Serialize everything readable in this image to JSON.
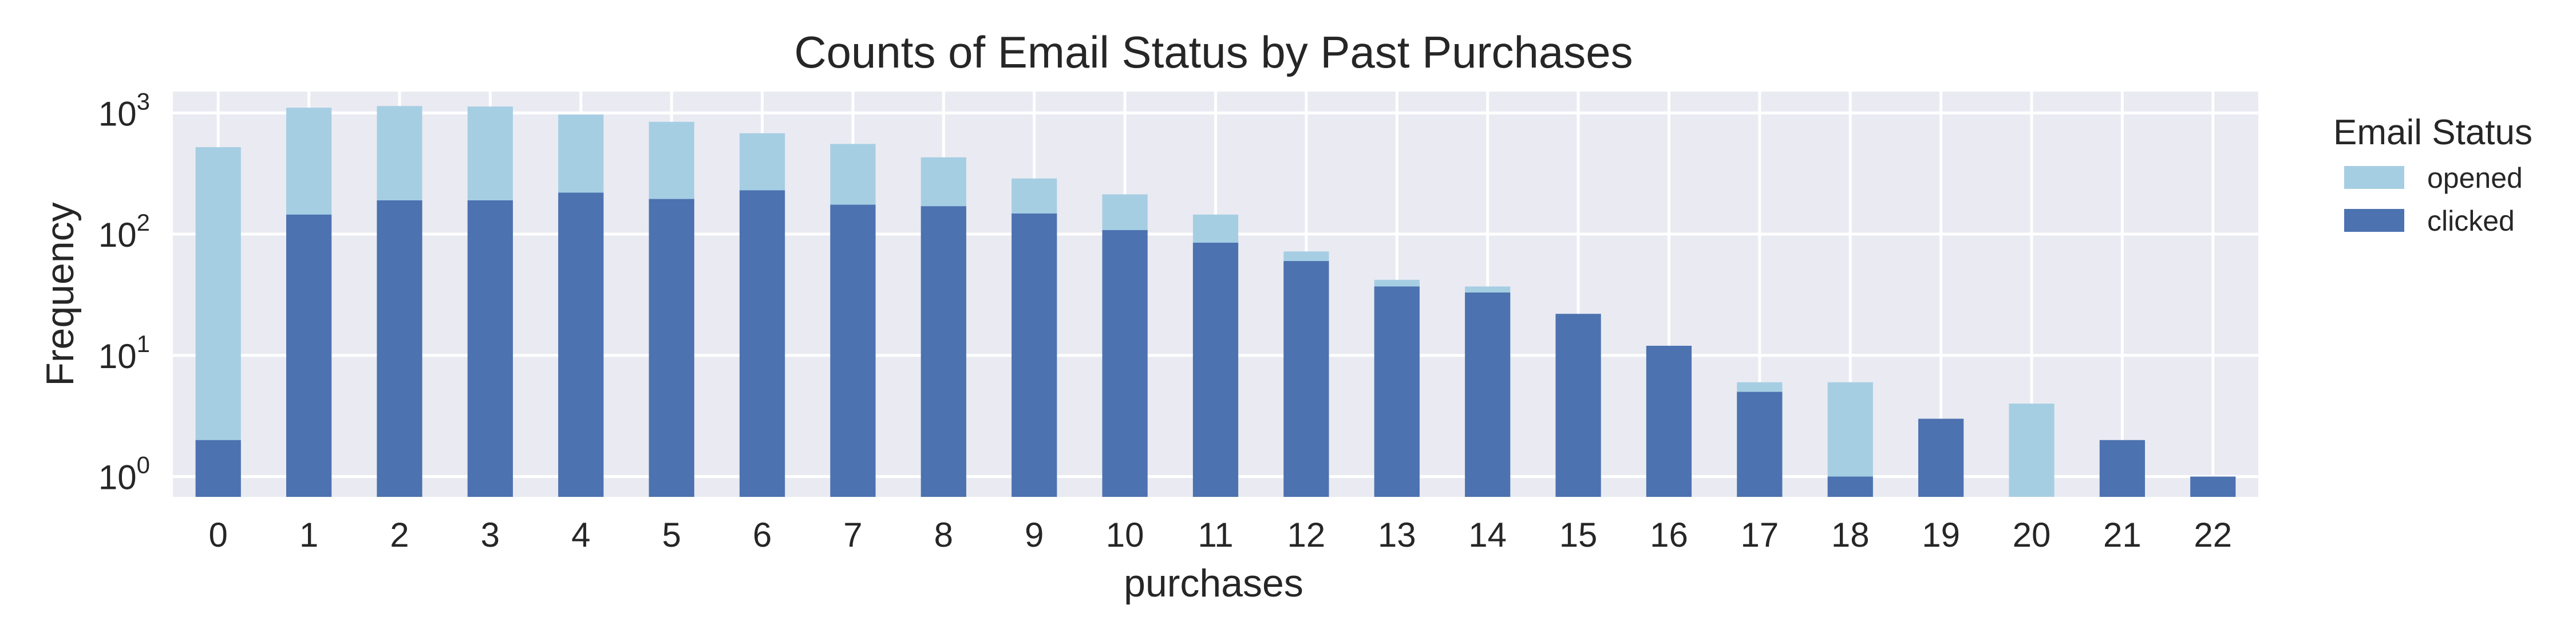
{
  "chart_data": {
    "type": "bar",
    "stacked": true,
    "title": "Counts of Email Status by Past Purchases",
    "xlabel": "purchases",
    "ylabel": "Frequency",
    "yscale": "log",
    "ylim": [
      0.68,
      1500
    ],
    "y_ticks": [
      {
        "value": 1,
        "base": "10",
        "exp": "0"
      },
      {
        "value": 10,
        "base": "10",
        "exp": "1"
      },
      {
        "value": 100,
        "base": "10",
        "exp": "2"
      },
      {
        "value": 1000,
        "base": "10",
        "exp": "3"
      }
    ],
    "grid": true,
    "legend": {
      "title": "Email Status",
      "placement": "outside-right"
    },
    "categories": [
      "0",
      "1",
      "2",
      "3",
      "4",
      "5",
      "6",
      "7",
      "8",
      "9",
      "10",
      "11",
      "12",
      "13",
      "14",
      "15",
      "16",
      "17",
      "18",
      "19",
      "20",
      "21",
      "22"
    ],
    "series": [
      {
        "name": "clicked",
        "color": "#4c72b0",
        "values": [
          2,
          145,
          190,
          190,
          220,
          195,
          230,
          175,
          170,
          148,
          108,
          85,
          60,
          37,
          33,
          22,
          12,
          5,
          1,
          3,
          0,
          2,
          1
        ]
      },
      {
        "name": "opened",
        "color": "#a6cee3",
        "values": [
          520,
          960,
          950,
          940,
          750,
          650,
          450,
          380,
          260,
          140,
          105,
          60,
          12,
          5,
          4,
          0,
          0,
          1,
          5,
          0,
          4,
          0,
          0
        ]
      }
    ]
  }
}
